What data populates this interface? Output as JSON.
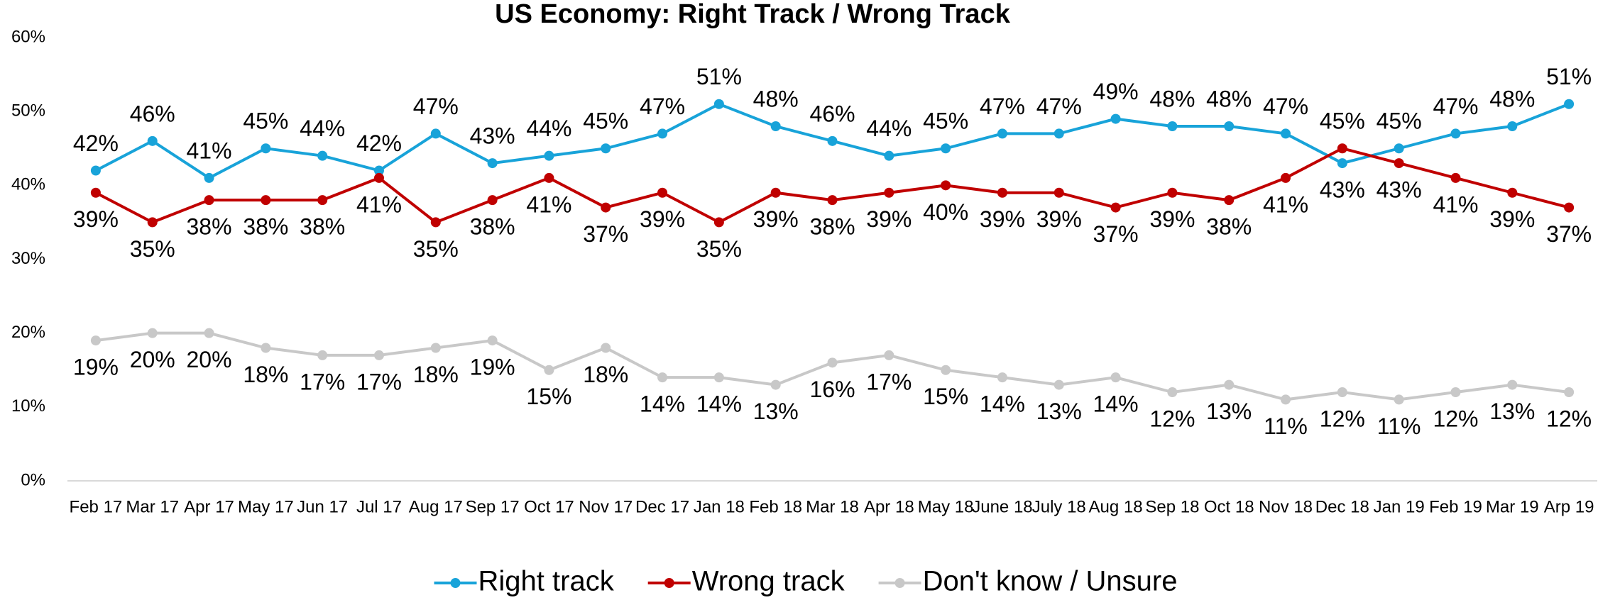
{
  "chart_data": {
    "type": "line",
    "title": "US Economy: Right Track / Wrong Track",
    "categories": [
      "Feb 17",
      "Mar 17",
      "Apr 17",
      "May 17",
      "Jun 17",
      "Jul 17",
      "Aug 17",
      "Sep 17",
      "Oct 17",
      "Nov 17",
      "Dec 17",
      "Jan 18",
      "Feb 18",
      "Mar 18",
      "Apr 18",
      "May 18",
      "June 18",
      "July 18",
      "Aug 18",
      "Sep 18",
      "Oct 18",
      "Nov 18",
      "Dec 18",
      "Jan 19",
      "Feb 19",
      "Mar 19",
      "Arp 19"
    ],
    "series": [
      {
        "name": "Right track",
        "color": "#18a3d9",
        "values": [
          42,
          46,
          41,
          45,
          44,
          42,
          47,
          43,
          44,
          45,
          47,
          51,
          48,
          46,
          44,
          45,
          47,
          47,
          49,
          48,
          48,
          47,
          43,
          45,
          47,
          48,
          51
        ],
        "value_labels": [
          "42%",
          "46%",
          "41%",
          "45%",
          "44%",
          "42%",
          "47%",
          "43%",
          "44%",
          "45%",
          "47%",
          "51%",
          "48%",
          "46%",
          "44%",
          "45%",
          "47%",
          "47%",
          "49%",
          "48%",
          "48%",
          "47%",
          "43%",
          "45%",
          "47%",
          "48%",
          "51%"
        ]
      },
      {
        "name": "Wrong track",
        "color": "#c00000",
        "values": [
          39,
          35,
          38,
          38,
          38,
          41,
          35,
          38,
          41,
          37,
          39,
          35,
          39,
          38,
          39,
          40,
          39,
          39,
          37,
          39,
          38,
          41,
          45,
          43,
          41,
          39,
          37
        ],
        "value_labels": [
          "39%",
          "35%",
          "38%",
          "38%",
          "38%",
          "41%",
          "35%",
          "38%",
          "41%",
          "37%",
          "39%",
          "35%",
          "39%",
          "38%",
          "39%",
          "40%",
          "39%",
          "39%",
          "37%",
          "39%",
          "38%",
          "41%",
          "45%",
          "43%",
          "41%",
          "39%",
          "37%"
        ]
      },
      {
        "name": "Don't know / Unsure",
        "color": "#c8c8c8",
        "values": [
          19,
          20,
          20,
          18,
          17,
          17,
          18,
          19,
          15,
          18,
          14,
          14,
          13,
          16,
          17,
          15,
          14,
          13,
          14,
          12,
          13,
          11,
          12,
          11,
          12,
          13,
          12
        ],
        "value_labels": [
          "19%",
          "20%",
          "20%",
          "18%",
          "17%",
          "17%",
          "18%",
          "19%",
          "15%",
          "18%",
          "14%",
          "14%",
          "13%",
          "16%",
          "17%",
          "15%",
          "14%",
          "13%",
          "14%",
          "12%",
          "13%",
          "11%",
          "12%",
          "11%",
          "12%",
          "13%",
          "12%"
        ]
      }
    ],
    "ylim": [
      0,
      60
    ],
    "yticks": [
      {
        "value": 0,
        "label": "0%"
      },
      {
        "value": 10,
        "label": "10%"
      },
      {
        "value": 20,
        "label": "20%"
      },
      {
        "value": 30,
        "label": "30%"
      },
      {
        "value": 40,
        "label": "40%"
      },
      {
        "value": 50,
        "label": "50%"
      },
      {
        "value": 60,
        "label": "60%"
      }
    ],
    "grid": false,
    "legend": "bottom"
  }
}
